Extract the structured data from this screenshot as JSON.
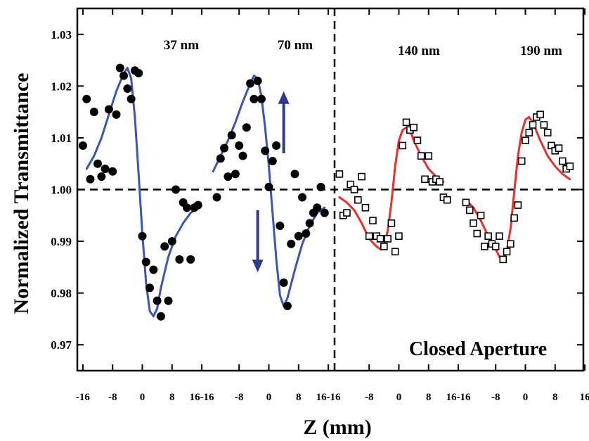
{
  "chart_data": {
    "type": "scatter",
    "title": "",
    "xlabel": "Z (mm)",
    "ylabel": "Normalized Transmittance",
    "ylim": [
      0.965,
      1.035
    ],
    "y_ticks": [
      "0.97",
      "0.98",
      "0.99",
      "1.00",
      "1.01",
      "1.02",
      "1.03"
    ],
    "y_tick_values": [
      0.97,
      0.98,
      0.99,
      1.0,
      1.01,
      1.02,
      1.03
    ],
    "panel_xlim": [
      -17.5,
      17.5
    ],
    "x_tick_values": [
      -16,
      -8,
      0,
      8,
      16
    ],
    "x_tick_labels": [
      "-16",
      "-8",
      "0",
      "8",
      "16-16",
      "-8",
      "0",
      "8",
      "16-16",
      "-8",
      "0",
      "8",
      "16-16",
      "-8",
      "0",
      "8",
      "16"
    ],
    "reference_line_y": 1.0,
    "annotation": "Closed Aperture",
    "colors": {
      "blue_fit": "#3a56b0",
      "red_fit": "#e8302a",
      "arrow": "#2e3a8c",
      "marker": "#000000"
    },
    "panels": [
      {
        "label": "37 nm",
        "marker": "filled-circle",
        "fit_color": "#3a56b0",
        "points": [
          [
            -16,
            1.0085
          ],
          [
            -15,
            1.0175
          ],
          [
            -14,
            1.002
          ],
          [
            -13,
            1.015
          ],
          [
            -12,
            1.005
          ],
          [
            -11,
            1.0025
          ],
          [
            -10,
            1.004
          ],
          [
            -9,
            1.0155
          ],
          [
            -8,
            1.0035
          ],
          [
            -7,
            1.0145
          ],
          [
            -6,
            1.0235
          ],
          [
            -5,
            1.022
          ],
          [
            -4,
            1.0195
          ],
          [
            -3,
            1.0175
          ],
          [
            -2,
            1.023
          ],
          [
            -1,
            1.0225
          ],
          [
            0,
            0.991
          ],
          [
            1,
            0.986
          ],
          [
            2,
            0.981
          ],
          [
            3,
            0.9845
          ],
          [
            4,
            0.9785
          ],
          [
            5,
            0.9755
          ],
          [
            6,
            0.989
          ],
          [
            7,
            0.9785
          ],
          [
            8,
            0.99
          ],
          [
            9,
            1.0
          ],
          [
            10,
            0.9865
          ],
          [
            11,
            0.9975
          ],
          [
            12,
            0.9965
          ],
          [
            13,
            0.9865
          ],
          [
            14,
            0.9965
          ],
          [
            15,
            0.997
          ]
        ],
        "fit": [
          [
            -15,
            1.004
          ],
          [
            -13,
            1.0065
          ],
          [
            -11,
            1.01
          ],
          [
            -9,
            1.0145
          ],
          [
            -7,
            1.019
          ],
          [
            -5,
            1.0225
          ],
          [
            -4,
            1.0235
          ],
          [
            -3,
            1.0215
          ],
          [
            -2,
            1.014
          ],
          [
            -1,
            1.003
          ],
          [
            0,
            0.9915
          ],
          [
            1,
            0.982
          ],
          [
            2,
            0.9765
          ],
          [
            3,
            0.9755
          ],
          [
            4,
            0.977
          ],
          [
            5,
            0.981
          ],
          [
            7,
            0.987
          ],
          [
            9,
            0.991
          ],
          [
            11,
            0.9935
          ],
          [
            13,
            0.9955
          ],
          [
            15,
            0.9965
          ]
        ]
      },
      {
        "label": "70 nm",
        "marker": "filled-circle",
        "fit_color": "#3a56b0",
        "points": [
          [
            -14,
            0.9985
          ],
          [
            -13,
            1.006
          ],
          [
            -12,
            1.008
          ],
          [
            -11,
            1.0025
          ],
          [
            -10,
            1.0105
          ],
          [
            -9,
            1.003
          ],
          [
            -8,
            1.0085
          ],
          [
            -7,
            1.0065
          ],
          [
            -6,
            1.012
          ],
          [
            -5,
            1.0205
          ],
          [
            -4,
            1.0175
          ],
          [
            -3,
            1.021
          ],
          [
            -2,
            1.0175
          ],
          [
            -1,
            1.0075
          ],
          [
            0,
            1.0005
          ],
          [
            1,
            1.0055
          ],
          [
            2,
            1.0085
          ],
          [
            3,
            0.993
          ],
          [
            4,
            0.982
          ],
          [
            5,
            0.9775
          ],
          [
            6,
            0.9895
          ],
          [
            7,
            1.003
          ],
          [
            8,
            0.991
          ],
          [
            9,
            0.9985
          ],
          [
            10,
            0.9915
          ],
          [
            11,
            0.9935
          ],
          [
            12,
            0.9955
          ],
          [
            13,
            0.9965
          ],
          [
            14,
            1.0005
          ],
          [
            15,
            0.9955
          ]
        ],
        "fit": [
          [
            -15,
            1.0035
          ],
          [
            -13,
            1.0065
          ],
          [
            -11,
            1.0095
          ],
          [
            -9,
            1.013
          ],
          [
            -7,
            1.017
          ],
          [
            -5,
            1.0205
          ],
          [
            -4,
            1.022
          ],
          [
            -3,
            1.0215
          ],
          [
            -2,
            1.018
          ],
          [
            -1,
            1.012
          ],
          [
            0,
            1.0045
          ],
          [
            1,
            0.9955
          ],
          [
            2,
            0.9865
          ],
          [
            3,
            0.9795
          ],
          [
            4,
            0.9775
          ],
          [
            5,
            0.979
          ],
          [
            7,
            0.9845
          ],
          [
            9,
            0.9895
          ],
          [
            11,
            0.993
          ],
          [
            13,
            0.9955
          ],
          [
            15,
            0.9965
          ]
        ],
        "arrows": [
          {
            "direction": "up",
            "x": 4,
            "y_from": 1.007,
            "y_to": 1.019
          },
          {
            "direction": "down",
            "x": -3,
            "y_from": 0.996,
            "y_to": 0.984
          }
        ]
      },
      {
        "label": "140 nm",
        "marker": "open-square",
        "fit_color": "#e8302a",
        "points": [
          [
            -16,
            1.003
          ],
          [
            -15,
            0.995
          ],
          [
            -14,
            0.9955
          ],
          [
            -13,
            1.001
          ],
          [
            -12,
            1.0
          ],
          [
            -11,
            0.998
          ],
          [
            -10,
            1.0025
          ],
          [
            -9,
            0.9965
          ],
          [
            -8,
            0.991
          ],
          [
            -7,
            0.994
          ],
          [
            -6,
            0.991
          ],
          [
            -5,
            0.9905
          ],
          [
            -4,
            0.989
          ],
          [
            -3,
            0.9905
          ],
          [
            -2,
            0.9935
          ],
          [
            -1,
            0.988
          ],
          [
            0,
            0.991
          ],
          [
            1,
            1.0085
          ],
          [
            2,
            1.013
          ],
          [
            3,
            1.0115
          ],
          [
            4,
            1.012
          ],
          [
            5,
            1.0095
          ],
          [
            6,
            1.0065
          ],
          [
            7,
            1.002
          ],
          [
            8,
            1.0065
          ],
          [
            9,
            1.0015
          ],
          [
            10,
            1.002
          ],
          [
            11,
            1.0015
          ],
          [
            12,
            0.9985
          ],
          [
            13,
            0.998
          ]
        ],
        "fit": [
          [
            -16,
            0.9985
          ],
          [
            -14,
            0.9975
          ],
          [
            -12,
            0.996
          ],
          [
            -10,
            0.9935
          ],
          [
            -8,
            0.9905
          ],
          [
            -6,
            0.989
          ],
          [
            -5,
            0.9885
          ],
          [
            -4,
            0.989
          ],
          [
            -3,
            0.992
          ],
          [
            -2,
            0.9975
          ],
          [
            -1,
            1.0045
          ],
          [
            0,
            1.0095
          ],
          [
            1,
            1.0115
          ],
          [
            2,
            1.012
          ],
          [
            3,
            1.0115
          ],
          [
            4,
            1.0095
          ],
          [
            6,
            1.0065
          ],
          [
            8,
            1.004
          ],
          [
            10,
            1.0025
          ],
          [
            12,
            1.0015
          ]
        ]
      },
      {
        "label": "190 nm",
        "marker": "open-square",
        "fit_color": "#e8302a",
        "points": [
          [
            -16,
            0.9975
          ],
          [
            -15,
            0.996
          ],
          [
            -14,
            0.9935
          ],
          [
            -13,
            0.9915
          ],
          [
            -12,
            0.995
          ],
          [
            -11,
            0.989
          ],
          [
            -10,
            0.991
          ],
          [
            -9,
            0.9895
          ],
          [
            -8,
            0.989
          ],
          [
            -7,
            0.991
          ],
          [
            -6,
            0.9865
          ],
          [
            -5,
            0.988
          ],
          [
            -4,
            0.9895
          ],
          [
            -3,
            0.9945
          ],
          [
            -2,
            0.997
          ],
          [
            -1,
            1.0055
          ],
          [
            0,
            1.0095
          ],
          [
            1,
            1.011
          ],
          [
            2,
            1.0125
          ],
          [
            3,
            1.014
          ],
          [
            4,
            1.0145
          ],
          [
            5,
            1.0125
          ],
          [
            6,
            1.011
          ],
          [
            7,
            1.0085
          ],
          [
            8,
            1.0075
          ],
          [
            9,
            1.008
          ],
          [
            10,
            1.0055
          ],
          [
            11,
            1.004
          ],
          [
            12,
            1.0045
          ]
        ],
        "fit": [
          [
            -16,
            0.998
          ],
          [
            -14,
            0.9965
          ],
          [
            -12,
            0.994
          ],
          [
            -10,
            0.991
          ],
          [
            -8,
            0.9885
          ],
          [
            -7,
            0.987
          ],
          [
            -6,
            0.9865
          ],
          [
            -5,
            0.988
          ],
          [
            -4,
            0.9925
          ],
          [
            -3,
            0.9995
          ],
          [
            -2,
            1.0065
          ],
          [
            -1,
            1.011
          ],
          [
            0,
            1.0135
          ],
          [
            1,
            1.014
          ],
          [
            2,
            1.013
          ],
          [
            4,
            1.0095
          ],
          [
            6,
            1.0065
          ],
          [
            8,
            1.0045
          ],
          [
            10,
            1.003
          ],
          [
            12,
            1.002
          ]
        ]
      }
    ]
  }
}
